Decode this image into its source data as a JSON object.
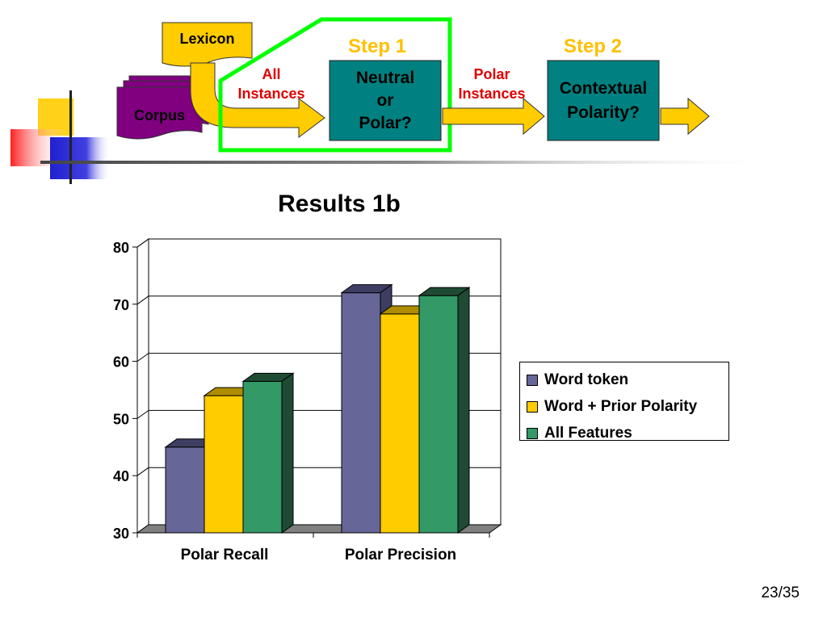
{
  "diagram": {
    "lexicon": "Lexicon",
    "corpus": "Corpus",
    "all_instances": "All\nInstances",
    "step1": "Step 1",
    "step2": "Step 2",
    "neutral_or_polar": "Neutral\nor\nPolar?",
    "polar_instances": "Polar\nInstances",
    "contextual_polarity": "Contextual\nPolarity?"
  },
  "colors": {
    "word_token": "#666699",
    "word_token_dark": "#3e3e63",
    "prior_polarity": "#ffcc00",
    "prior_polarity_dark": "#b08d00",
    "all_features": "#339966",
    "all_features_dark": "#1f4a33",
    "teal_box": "#008080",
    "purple_corpus": "#800080",
    "arrow_yellow": "#ffcc00",
    "highlight_green": "#00ff00"
  },
  "chart_data": {
    "type": "bar",
    "title": "Results 1b",
    "categories": [
      "Polar Recall",
      "Polar Precision"
    ],
    "series": [
      {
        "name": "Word token",
        "values": [
          45,
          72
        ]
      },
      {
        "name": "Word + Prior Polarity",
        "values": [
          54,
          68.3
        ]
      },
      {
        "name": "All Features",
        "values": [
          56.5,
          71.5
        ]
      }
    ],
    "ylim": [
      30,
      80
    ],
    "yticks": [
      30,
      40,
      50,
      60,
      70,
      80
    ],
    "grid": true,
    "three_d": true,
    "legend_position": "right"
  },
  "slide_number": "23/35"
}
